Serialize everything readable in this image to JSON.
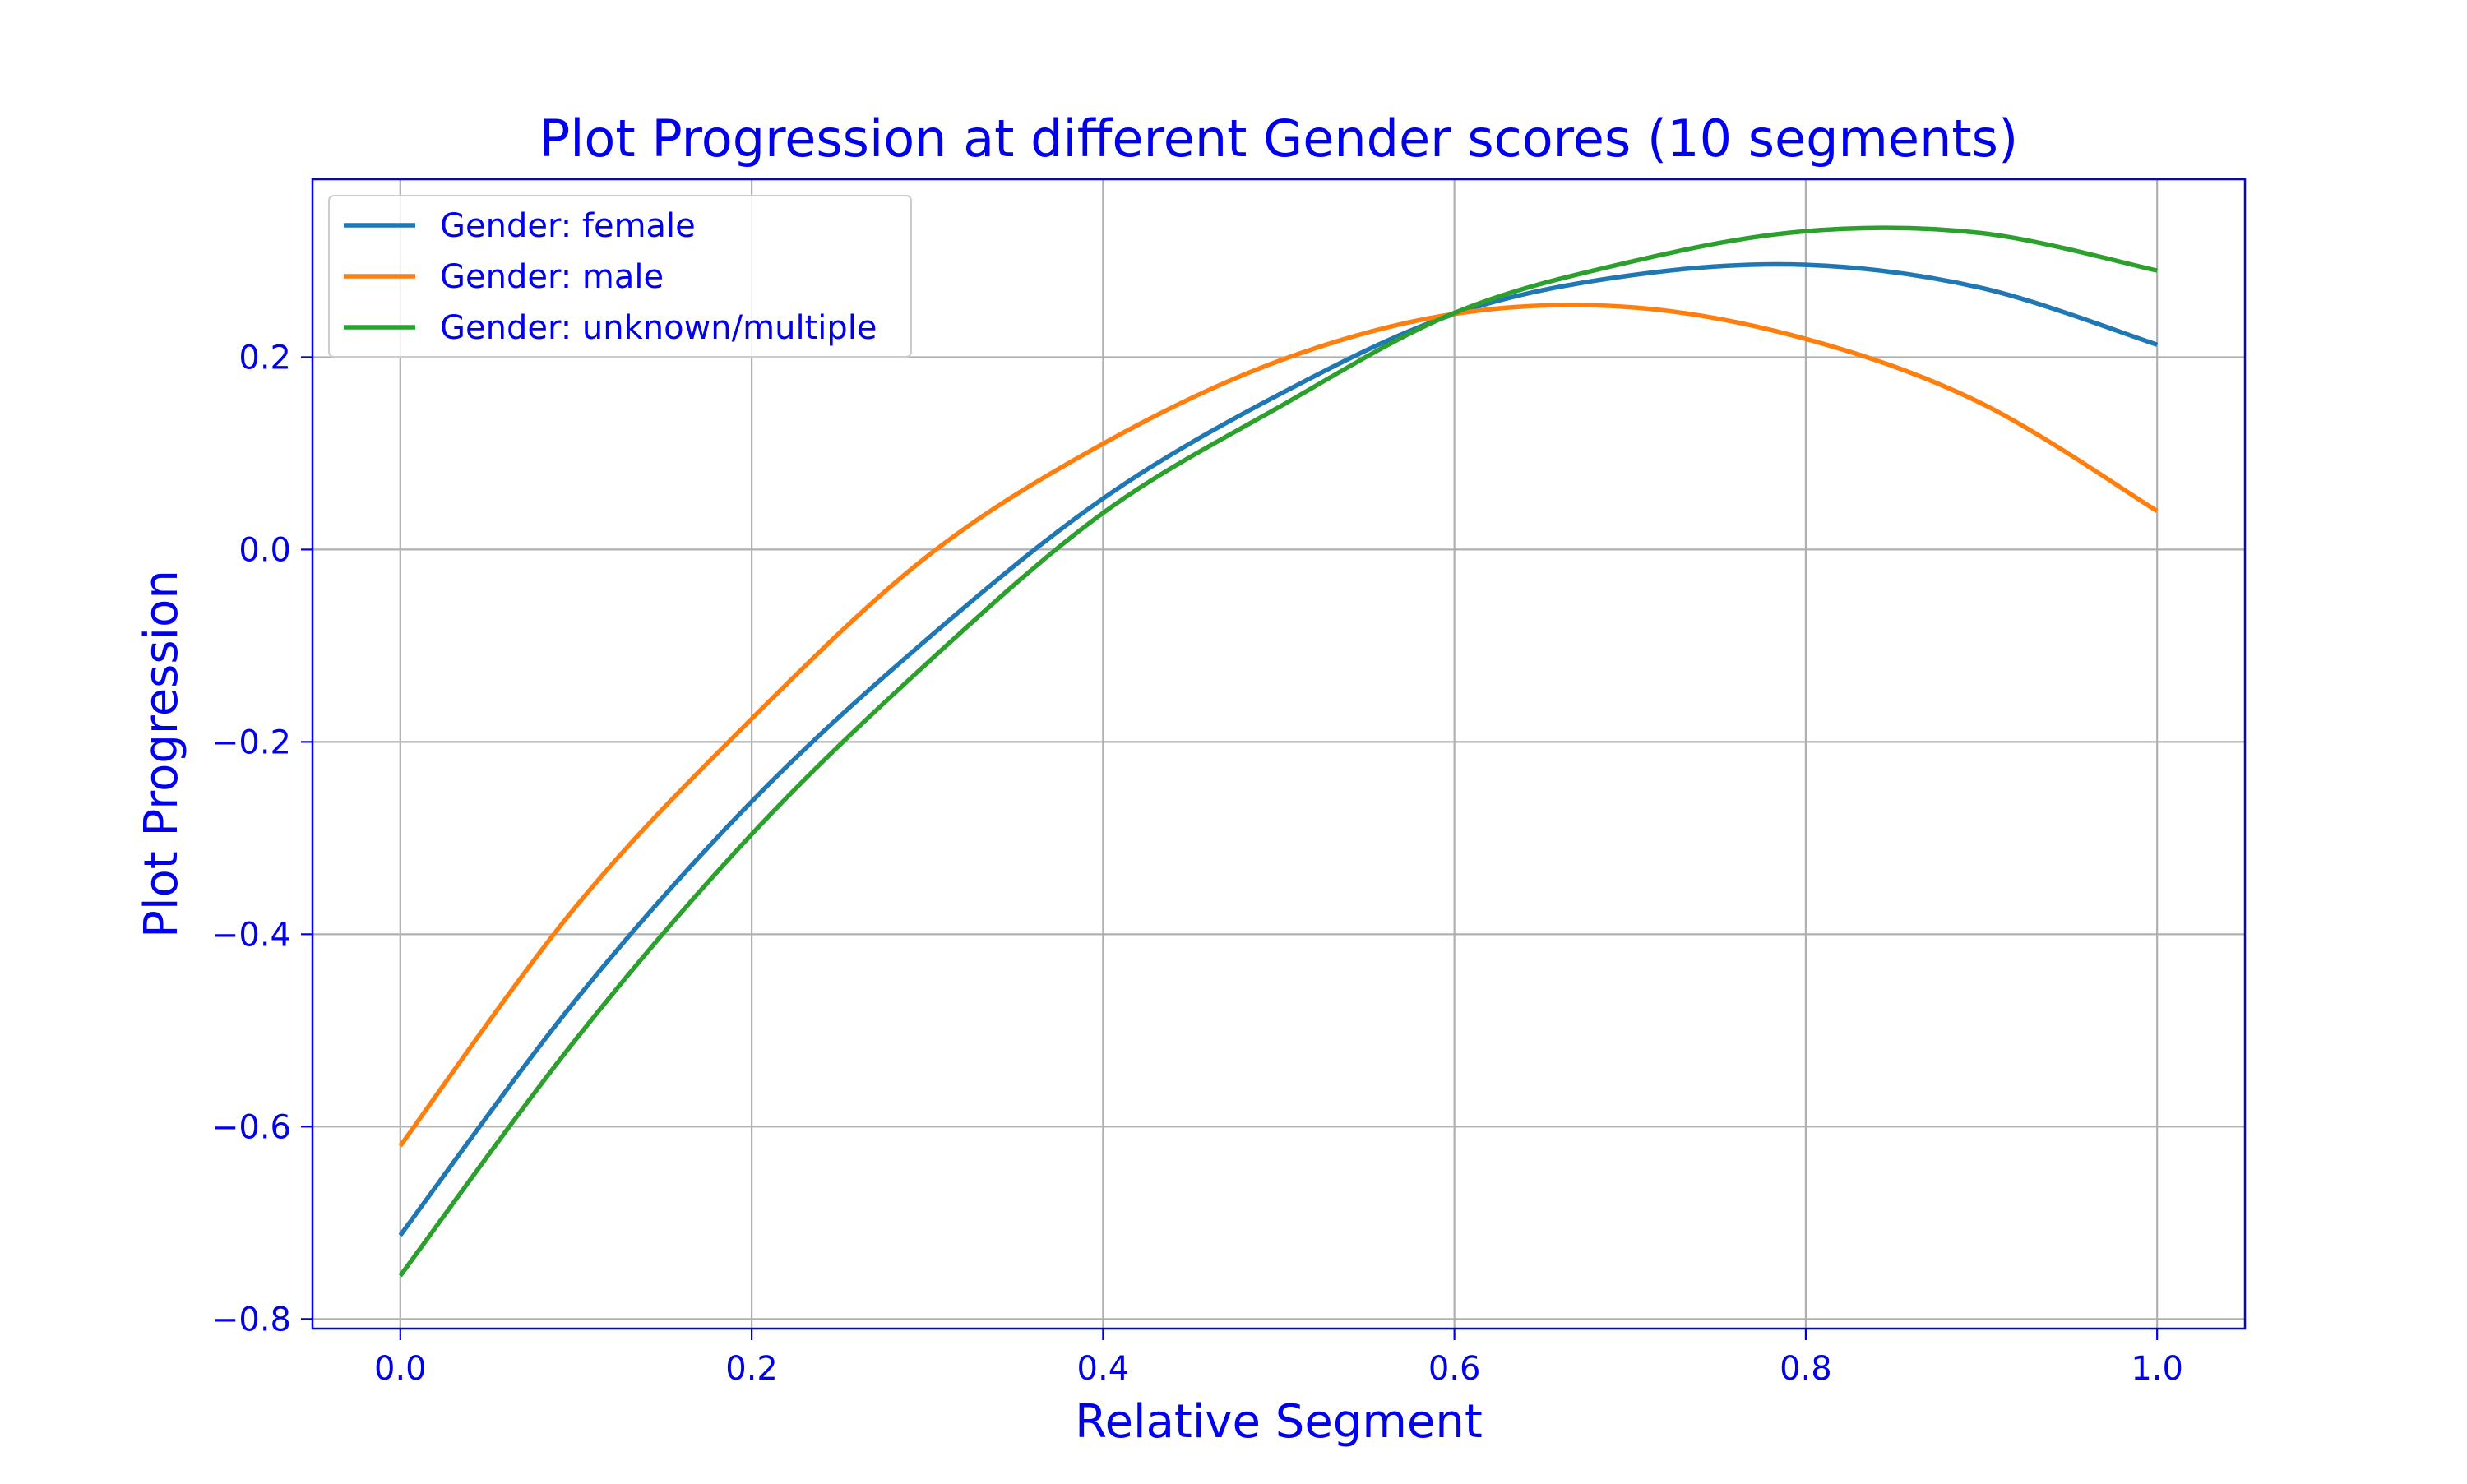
{
  "chart_data": {
    "type": "line",
    "title": "Plot Progression at different Gender scores (10 segments)",
    "xlabel": "Relative Segment",
    "ylabel": "Plot Progression",
    "xlim": [
      -0.05,
      1.05
    ],
    "ylim": [
      -0.81,
      0.385
    ],
    "xticks": [
      0.0,
      0.2,
      0.4,
      0.6,
      0.8,
      1.0
    ],
    "xtick_labels": [
      "0.0",
      "0.2",
      "0.4",
      "0.6",
      "0.8",
      "1.0"
    ],
    "yticks": [
      -0.8,
      -0.6,
      -0.4,
      -0.2,
      0.0,
      0.2
    ],
    "ytick_labels": [
      "−0.8",
      "−0.6",
      "−0.4",
      "−0.2",
      "0.0",
      "0.2"
    ],
    "grid": true,
    "legend_position": "top-left",
    "text_color": "#0000ee",
    "grid_color": "#b0b0b0",
    "series": [
      {
        "name": "Gender: female",
        "color": "#1f77b4",
        "x": [
          0.0,
          0.1,
          0.2,
          0.3,
          0.4,
          0.5,
          0.6,
          0.7,
          0.8,
          0.9,
          1.0
        ],
        "y": [
          -0.713,
          -0.468,
          -0.262,
          -0.093,
          0.053,
          0.161,
          0.245,
          0.285,
          0.296,
          0.272,
          0.213
        ]
      },
      {
        "name": "Gender: male",
        "color": "#ff7f0e",
        "x": [
          0.0,
          0.1,
          0.2,
          0.3,
          0.4,
          0.5,
          0.6,
          0.7,
          0.8,
          0.9,
          1.0
        ],
        "y": [
          -0.62,
          -0.371,
          -0.176,
          -0.007,
          0.11,
          0.196,
          0.245,
          0.252,
          0.219,
          0.152,
          0.04
        ]
      },
      {
        "name": "Gender: unknown/multiple",
        "color": "#2ca02c",
        "x": [
          0.0,
          0.1,
          0.2,
          0.3,
          0.4,
          0.5,
          0.6,
          0.7,
          0.8,
          0.9,
          1.0
        ],
        "y": [
          -0.755,
          -0.509,
          -0.296,
          -0.118,
          0.038,
          0.148,
          0.246,
          0.299,
          0.331,
          0.329,
          0.29
        ]
      }
    ]
  }
}
